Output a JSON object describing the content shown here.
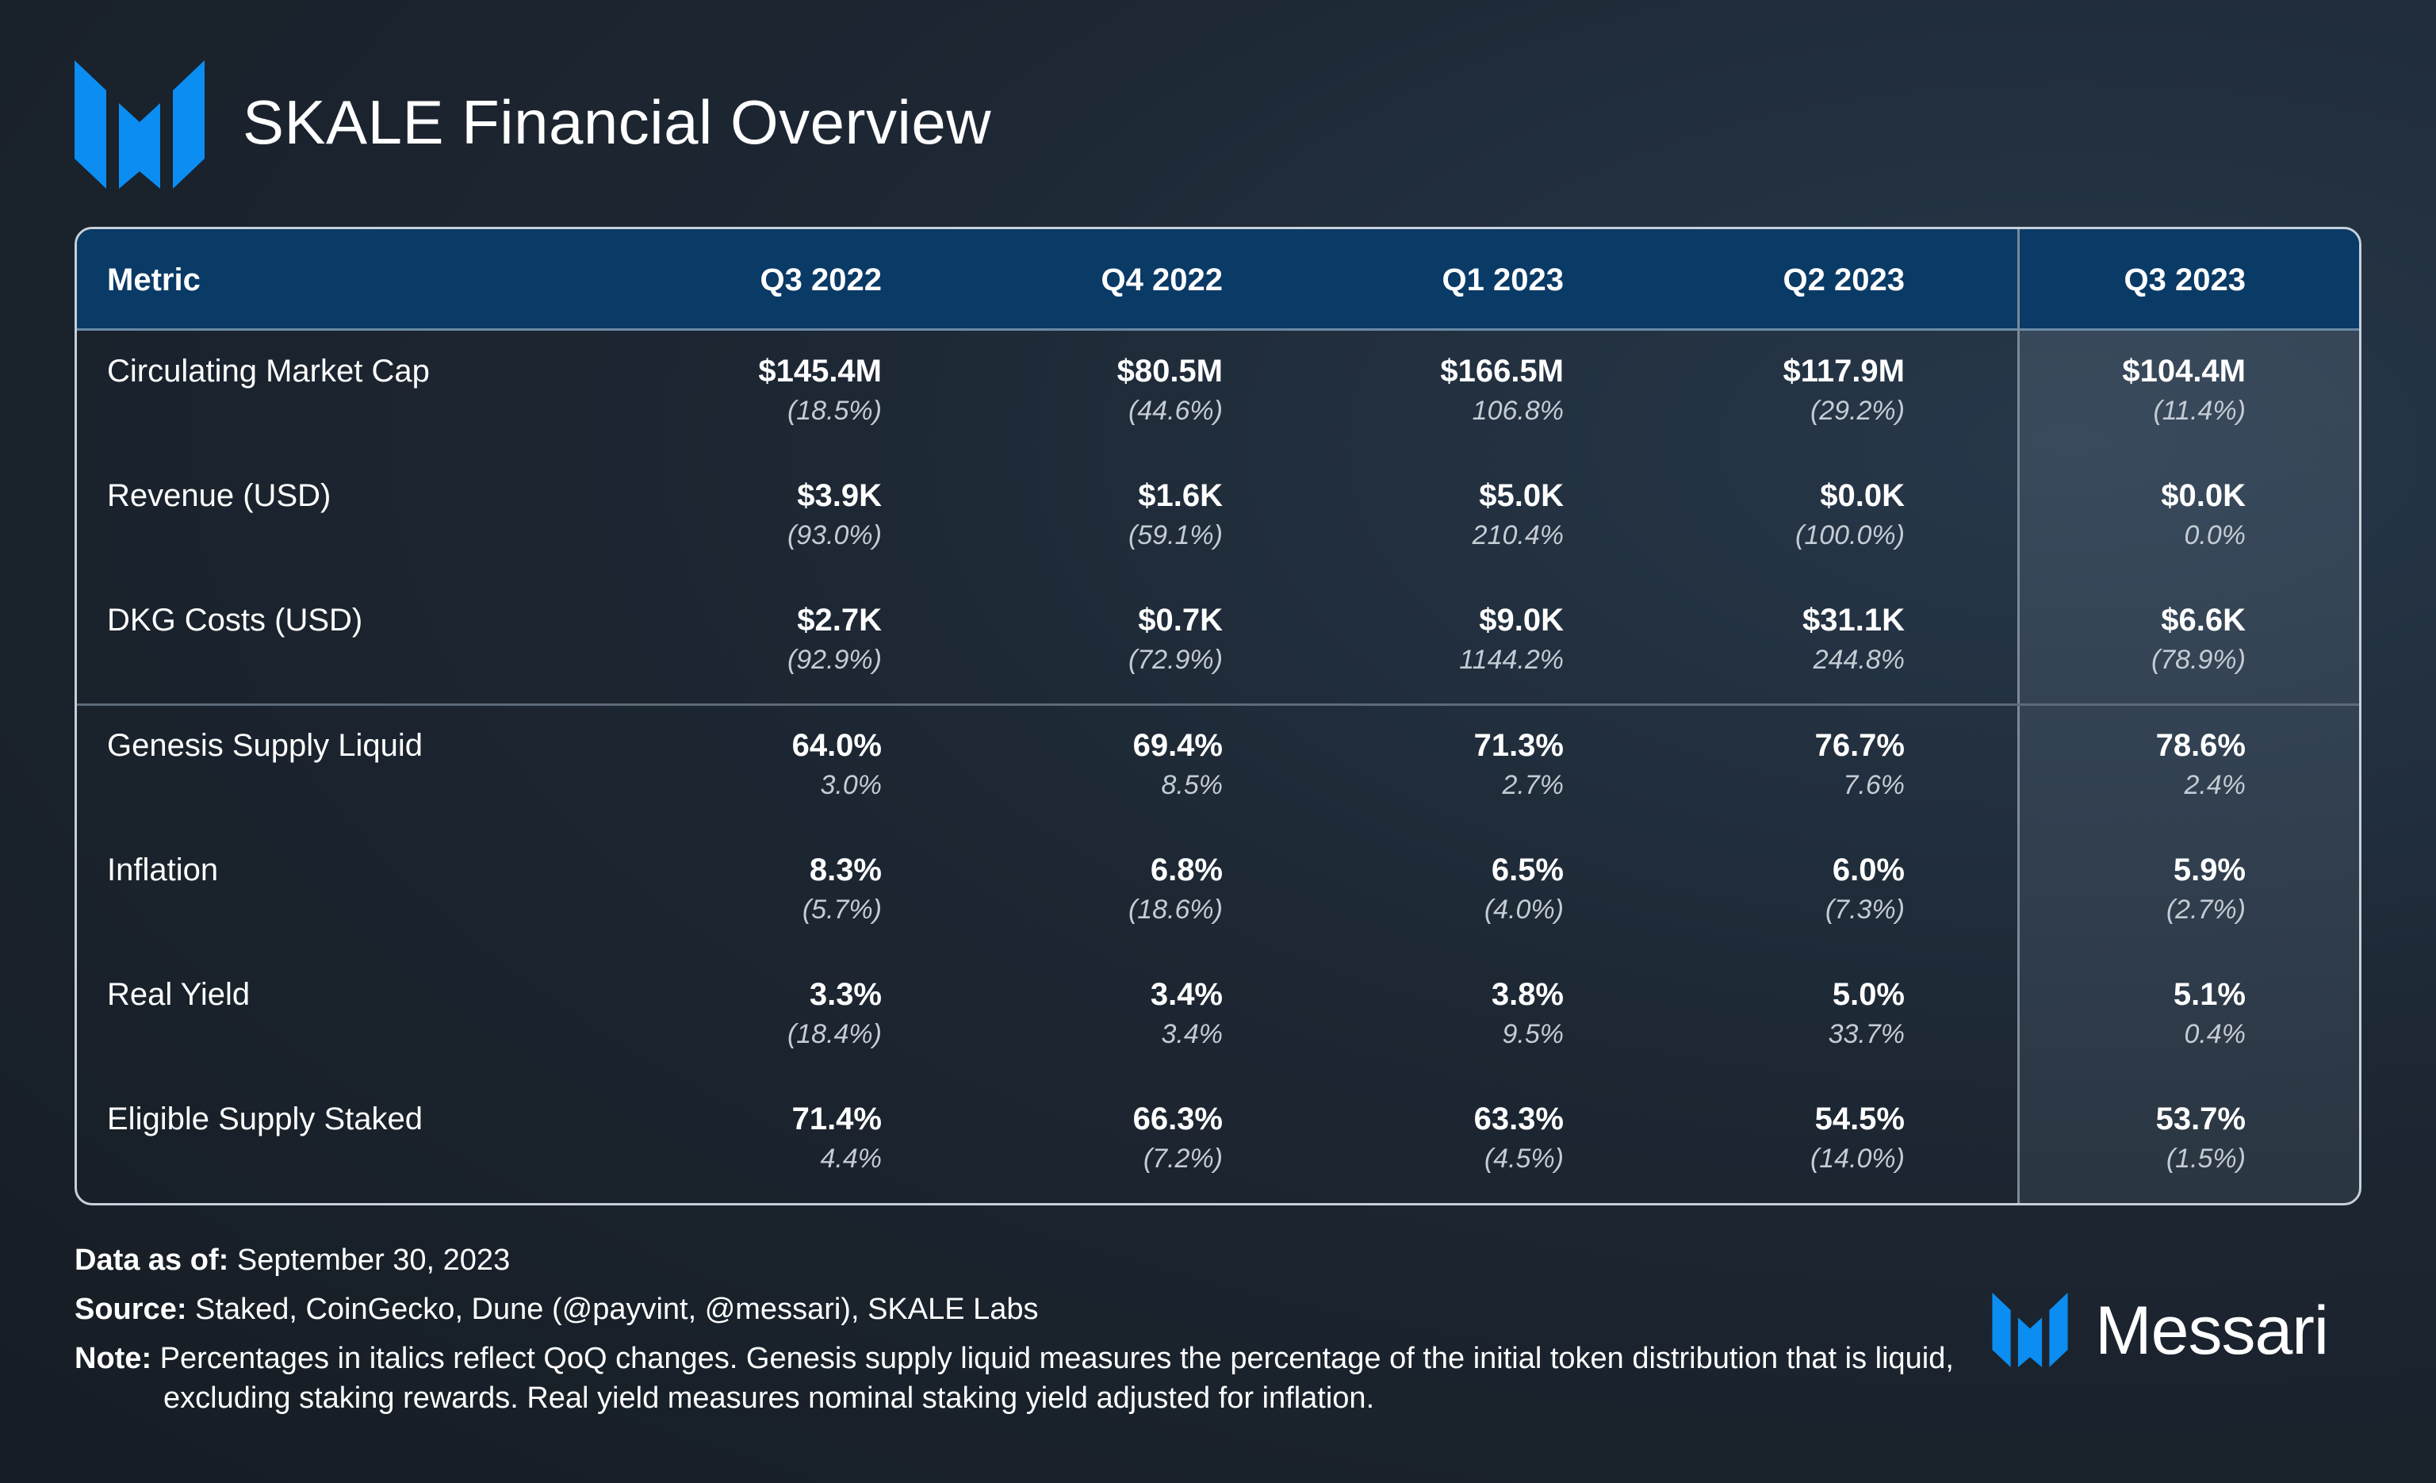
{
  "title": "SKALE Financial Overview",
  "logo_icon": "messari-logo-icon",
  "accent_color": "#0b8df2",
  "header_bg": "#0a3a66",
  "chart_data": {
    "type": "table",
    "columns": [
      "Metric",
      "Q3 2022",
      "Q4 2022",
      "Q1 2023",
      "Q2 2023",
      "Q3 2023"
    ],
    "highlighted_column": "Q3 2023",
    "rows": [
      {
        "metric": "Circulating Market Cap",
        "values": [
          "$145.4M",
          "$80.5M",
          "$166.5M",
          "$117.9M",
          "$104.4M"
        ],
        "changes": [
          "(18.5%)",
          "(44.6%)",
          "106.8%",
          "(29.2%)",
          "(11.4%)"
        ]
      },
      {
        "metric": "Revenue (USD)",
        "values": [
          "$3.9K",
          "$1.6K",
          "$5.0K",
          "$0.0K",
          "$0.0K"
        ],
        "changes": [
          "(93.0%)",
          "(59.1%)",
          "210.4%",
          "(100.0%)",
          "0.0%"
        ]
      },
      {
        "metric": "DKG Costs (USD)",
        "values": [
          "$2.7K",
          "$0.7K",
          "$9.0K",
          "$31.1K",
          "$6.6K"
        ],
        "changes": [
          "(92.9%)",
          "(72.9%)",
          "1144.2%",
          "244.8%",
          "(78.9%)"
        ]
      },
      {
        "metric": "Genesis Supply Liquid",
        "values": [
          "64.0%",
          "69.4%",
          "71.3%",
          "76.7%",
          "78.6%"
        ],
        "changes": [
          "3.0%",
          "8.5%",
          "2.7%",
          "7.6%",
          "2.4%"
        ]
      },
      {
        "metric": "Inflation",
        "values": [
          "8.3%",
          "6.8%",
          "6.5%",
          "6.0%",
          "5.9%"
        ],
        "changes": [
          "(5.7%)",
          "(18.6%)",
          "(4.0%)",
          "(7.3%)",
          "(2.7%)"
        ]
      },
      {
        "metric": "Real Yield",
        "values": [
          "3.3%",
          "3.4%",
          "3.8%",
          "5.0%",
          "5.1%"
        ],
        "changes": [
          "(18.4%)",
          "3.4%",
          "9.5%",
          "33.7%",
          "0.4%"
        ]
      },
      {
        "metric": "Eligible Supply Staked",
        "values": [
          "71.4%",
          "66.3%",
          "63.3%",
          "54.5%",
          "53.7%"
        ],
        "changes": [
          "4.4%",
          "(7.2%)",
          "(4.5%)",
          "(14.0%)",
          "(1.5%)"
        ]
      }
    ]
  },
  "footer": {
    "data_as_of_label": "Data as of:",
    "data_as_of_value": "September 30, 2023",
    "source_label": "Source:",
    "source_value": "Staked, CoinGecko, Dune (@payvint, @messari), SKALE Labs",
    "note_label": "Note:",
    "note_value": "Percentages in italics reflect QoQ changes. Genesis supply liquid measures the percentage of the initial token distribution that is liquid, excluding staking rewards. Real yield measures nominal staking yield adjusted for inflation."
  },
  "brand": {
    "name": "Messari",
    "icon": "messari-logo-icon"
  }
}
